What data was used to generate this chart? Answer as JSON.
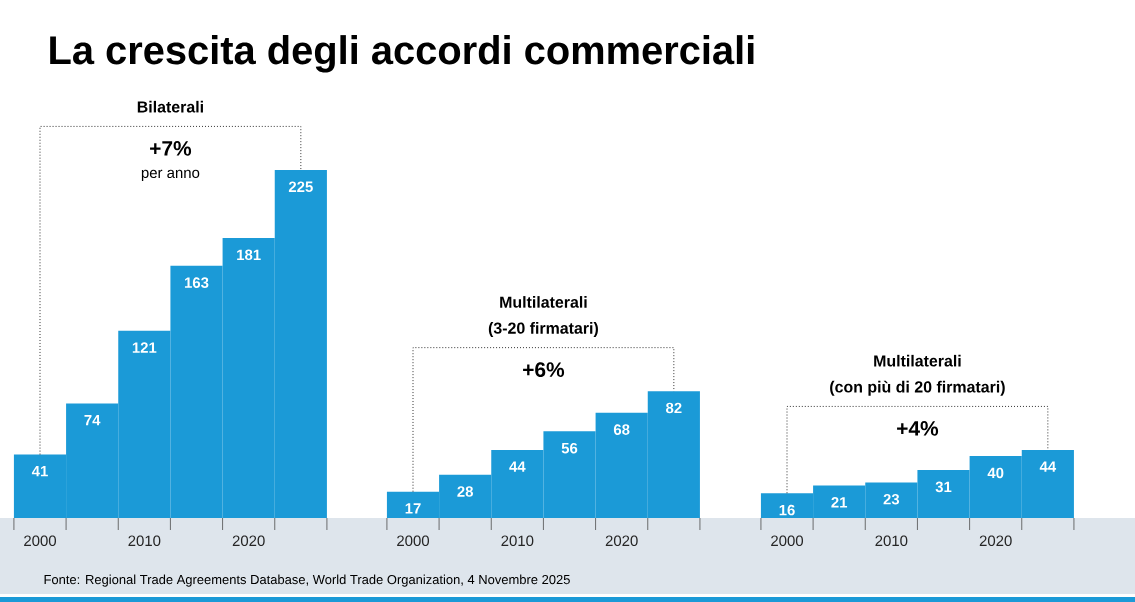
{
  "chart_data": [
    {
      "type": "bar",
      "title": "La crescita degli accordi commerciali",
      "subtitle": "Bilaterali",
      "categories": [
        "2000",
        null,
        "2010",
        null,
        "2020",
        null
      ],
      "values": [
        41,
        74,
        121,
        163,
        181,
        225
      ],
      "color": "#1b9ad7",
      "data_labels": true,
      "annotations": [
        "+7%",
        "per anno",
        "Fonte: Regional Trade Agreements Database, World Trade Organization, 4 Novembre 2025"
      ]
    },
    {
      "type": "bar",
      "title": "Multilaterali",
      "subtitle": "(3-20 firmatari)",
      "categories": [
        "2000",
        null,
        "2010",
        null,
        "2020",
        null
      ],
      "values": [
        17,
        28,
        44,
        56,
        68,
        82
      ],
      "color": "#1b9ad7",
      "data_labels": true,
      "annotations": [
        "+6%"
      ]
    },
    {
      "type": "bar",
      "title": "Multilaterali",
      "subtitle": "(con più di 20 firmatari)",
      "categories": [
        "2000",
        null,
        "2010",
        null,
        "2020",
        null
      ],
      "values": [
        16,
        21,
        23,
        31,
        40,
        44
      ],
      "color": "#1b9ad7",
      "data_labels": true,
      "annotations": [
        "+4%"
      ]
    }
  ]
}
